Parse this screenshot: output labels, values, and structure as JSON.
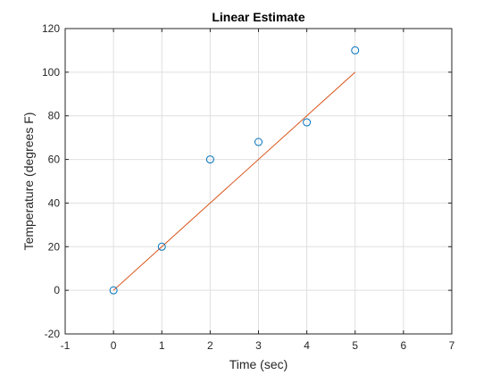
{
  "chart_data": {
    "type": "scatter",
    "title": "Linear Estimate",
    "xlabel": "Time (sec)",
    "ylabel": "Temperature (degrees F)",
    "xlim": [
      -1,
      7
    ],
    "ylim": [
      -20,
      120
    ],
    "xticks": [
      -1,
      0,
      1,
      2,
      3,
      4,
      5,
      6,
      7
    ],
    "yticks": [
      -20,
      0,
      20,
      40,
      60,
      80,
      100,
      120
    ],
    "grid": true,
    "series": [
      {
        "kind": "scatter",
        "marker": "circle-open",
        "color": "#0072BD",
        "x": [
          0,
          1,
          2,
          3,
          4,
          5
        ],
        "y": [
          0,
          20,
          60,
          68,
          77,
          110
        ]
      },
      {
        "kind": "line",
        "color": "#D95319",
        "x": [
          0,
          5
        ],
        "y": [
          0,
          100
        ]
      }
    ]
  }
}
